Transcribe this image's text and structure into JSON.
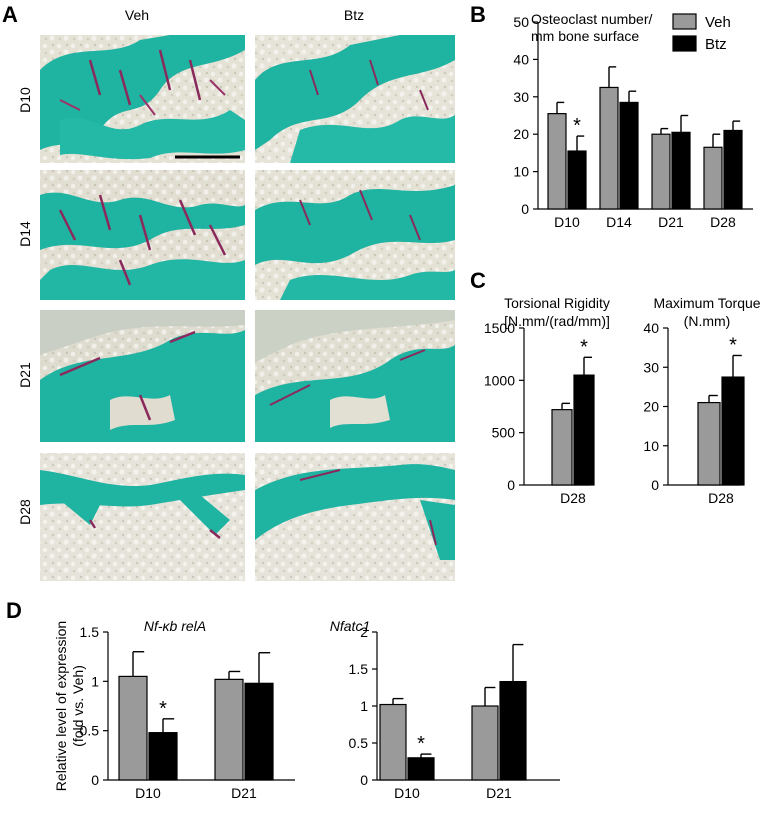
{
  "panel_letters": {
    "a": "A",
    "b": "B",
    "c": "C",
    "d": "D"
  },
  "histology": {
    "col_labels": [
      "Veh",
      "Btz"
    ],
    "row_labels": [
      "D10",
      "D14",
      "D21",
      "D28"
    ],
    "colors": {
      "bone": "#1fb3a2",
      "marrow": "#d6d3c6",
      "osteoclast": "#8a2a5c",
      "background": "#e8e6dc"
    }
  },
  "colors": {
    "veh": "#9a9a9a",
    "btz": "#000000"
  },
  "chart_data": [
    {
      "id": "B",
      "type": "bar",
      "title": "Osteoclast number/\nmm bone surface",
      "categories": [
        "D10",
        "D14",
        "D21",
        "D28"
      ],
      "series": [
        {
          "name": "Veh",
          "values": [
            25.5,
            32.5,
            20,
            16.5
          ],
          "errors": [
            3,
            5.5,
            1.5,
            3.5
          ]
        },
        {
          "name": "Btz",
          "values": [
            15.5,
            28.5,
            20.5,
            21
          ],
          "errors": [
            4,
            3,
            4.5,
            2.5
          ]
        }
      ],
      "ylim": [
        0,
        50
      ],
      "yticks": [
        0,
        10,
        20,
        30,
        40,
        50
      ],
      "significance": [
        {
          "category": "D10",
          "series": "Btz",
          "label": "*"
        }
      ],
      "legend": "top-right"
    },
    {
      "id": "C1",
      "type": "bar",
      "title": "Torsional Rigidity\n[N.mm/(rad/mm)]",
      "categories": [
        "D28"
      ],
      "series": [
        {
          "name": "Veh",
          "values": [
            720
          ],
          "errors": [
            60
          ]
        },
        {
          "name": "Btz",
          "values": [
            1050
          ],
          "errors": [
            170
          ]
        }
      ],
      "ylim": [
        0,
        1500
      ],
      "yticks": [
        0,
        500,
        1000,
        1500
      ],
      "significance": [
        {
          "category": "D28",
          "series": "Btz",
          "label": "*"
        }
      ]
    },
    {
      "id": "C2",
      "type": "bar",
      "title": "Maximum Torque\n(N.mm)",
      "categories": [
        "D28"
      ],
      "series": [
        {
          "name": "Veh",
          "values": [
            21
          ],
          "errors": [
            1.8
          ]
        },
        {
          "name": "Btz",
          "values": [
            27.5
          ],
          "errors": [
            5.5
          ]
        }
      ],
      "ylim": [
        0,
        40
      ],
      "yticks": [
        0,
        10,
        20,
        30,
        40
      ],
      "significance": [
        {
          "category": "D28",
          "series": "Btz",
          "label": "*"
        }
      ]
    },
    {
      "id": "D1",
      "type": "bar",
      "title": "Nf-κb relA",
      "ylabel": "Relative level of expression\n(fold vs. Veh)",
      "categories": [
        "D10",
        "D21"
      ],
      "series": [
        {
          "name": "Veh",
          "values": [
            1.05,
            1.02
          ],
          "errors": [
            0.25,
            0.08
          ]
        },
        {
          "name": "Btz",
          "values": [
            0.48,
            0.98
          ],
          "errors": [
            0.14,
            0.31
          ]
        }
      ],
      "ylim": [
        0,
        1.5
      ],
      "yticks": [
        0,
        0.5,
        1,
        1.5
      ],
      "significance": [
        {
          "category": "D10",
          "series": "Btz",
          "label": "*"
        }
      ]
    },
    {
      "id": "D2",
      "type": "bar",
      "title": "Nfatc1",
      "categories": [
        "D10",
        "D21"
      ],
      "series": [
        {
          "name": "Veh",
          "values": [
            1.02,
            1.0
          ],
          "errors": [
            0.08,
            0.25
          ]
        },
        {
          "name": "Btz",
          "values": [
            0.3,
            1.33
          ],
          "errors": [
            0.05,
            0.5
          ]
        }
      ],
      "ylim": [
        0,
        2
      ],
      "yticks": [
        0,
        0.5,
        1,
        1.5,
        2
      ],
      "significance": [
        {
          "category": "D10",
          "series": "Btz",
          "label": "*"
        }
      ]
    }
  ]
}
